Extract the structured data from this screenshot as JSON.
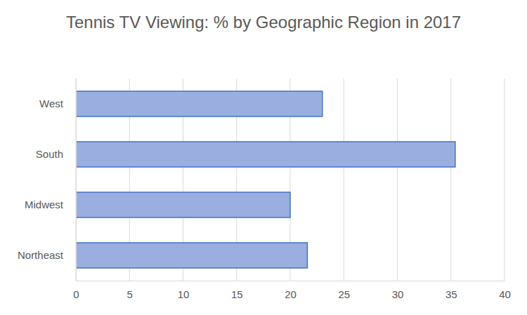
{
  "chart_data": {
    "type": "bar",
    "title": "Tennis TV Viewing: % by Geographic Region in 2017",
    "orientation": "horizontal",
    "categories": [
      "Northeast",
      "Midwest",
      "South",
      "West"
    ],
    "values": [
      21.6,
      20,
      35.4,
      23
    ],
    "color": "#9aaee0",
    "xlim": [
      0,
      40
    ],
    "xticks": [
      0,
      5,
      10,
      15,
      20,
      25,
      30,
      35,
      40
    ],
    "grid": true
  }
}
